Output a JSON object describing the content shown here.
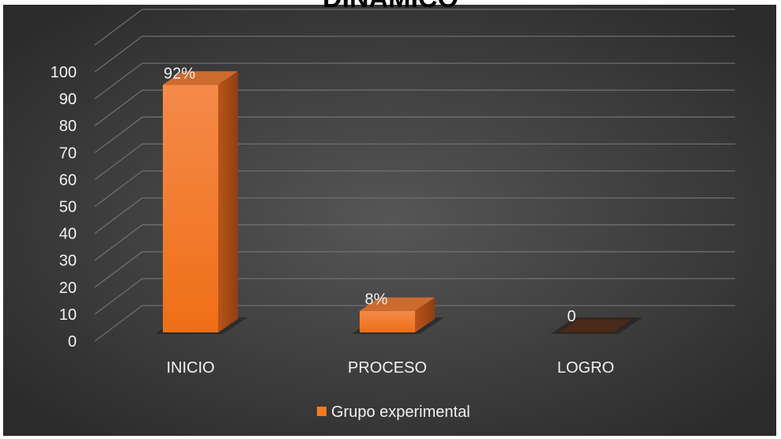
{
  "chart_data": {
    "type": "bar",
    "title": "DINÁMICO",
    "categories": [
      "INICIO",
      "PROCESO",
      "LOGRO"
    ],
    "series": [
      {
        "name": "Grupo experimental",
        "values": [
          92,
          8,
          0
        ],
        "color": "#f47a22"
      }
    ],
    "data_labels": [
      "92%",
      "8%",
      "0"
    ],
    "y_ticks": [
      "0",
      "10",
      "20",
      "30",
      "40",
      "50",
      "60",
      "70",
      "80",
      "90",
      "100"
    ],
    "ylim": [
      0,
      100
    ],
    "grid": true,
    "legend": "bottom",
    "style": "3d-column",
    "background": "#3a3a3a"
  }
}
